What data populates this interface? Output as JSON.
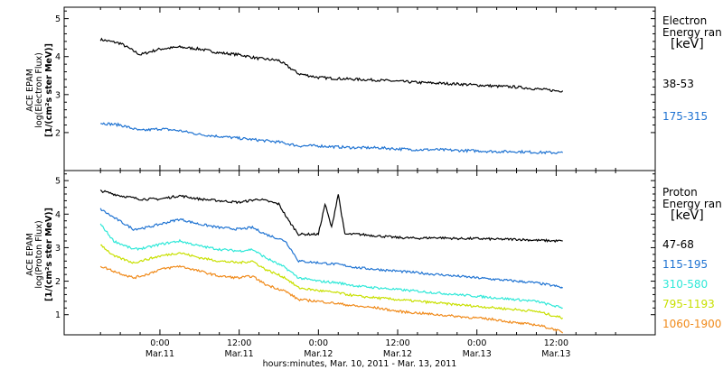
{
  "chart_data": [
    {
      "type": "line",
      "panel": "electron",
      "ylabel_lines": [
        "ACE EPAM",
        "log(Electron Flux)",
        "[1/(cm²s ster MeV)]"
      ],
      "legend_title_lines": [
        "Electron",
        "Energy ran",
        "[keV]"
      ],
      "ylim": [
        1,
        5.3
      ],
      "yticks": [
        2,
        3,
        4,
        5
      ],
      "series": [
        {
          "name": "38-53",
          "color": "#000000",
          "x": [
            -9,
            -6,
            -3,
            0,
            3,
            6,
            9,
            12,
            15,
            18,
            21,
            24,
            27,
            30,
            33,
            36,
            39,
            42,
            45,
            48,
            51,
            54,
            57,
            60,
            61
          ],
          "values": [
            4.45,
            4.35,
            4.05,
            4.2,
            4.25,
            4.2,
            4.1,
            4.05,
            3.95,
            3.9,
            3.55,
            3.45,
            3.42,
            3.4,
            3.38,
            3.35,
            3.32,
            3.3,
            3.28,
            3.25,
            3.22,
            3.2,
            3.15,
            3.1,
            3.1
          ]
        },
        {
          "name": "175-315",
          "color": "#1f73d2",
          "x": [
            -9,
            -6,
            -3,
            0,
            3,
            6,
            9,
            12,
            15,
            18,
            21,
            24,
            27,
            30,
            33,
            36,
            39,
            42,
            45,
            48,
            51,
            54,
            57,
            60,
            61
          ],
          "values": [
            2.25,
            2.2,
            2.05,
            2.1,
            2.05,
            1.95,
            1.9,
            1.85,
            1.8,
            1.75,
            1.65,
            1.65,
            1.62,
            1.6,
            1.6,
            1.57,
            1.55,
            1.55,
            1.53,
            1.52,
            1.5,
            1.5,
            1.48,
            1.47,
            1.47
          ]
        }
      ]
    },
    {
      "type": "line",
      "panel": "proton",
      "ylabel_lines": [
        "ACE EPAM",
        "log(Proton Flux)",
        "[1/(cm²s ster MeV)]"
      ],
      "legend_title_lines": [
        "Proton",
        "Energy ran",
        "[keV]"
      ],
      "ylim": [
        0.4,
        5.3
      ],
      "yticks": [
        1,
        2,
        3,
        4,
        5
      ],
      "series": [
        {
          "name": "47-68",
          "color": "#000000",
          "x": [
            -9,
            -6,
            -3,
            0,
            3,
            6,
            9,
            12,
            15,
            18,
            19.5,
            21,
            24,
            25,
            26,
            27,
            28,
            30,
            33,
            36,
            39,
            42,
            45,
            48,
            51,
            54,
            57,
            60,
            61
          ],
          "values": [
            4.7,
            4.55,
            4.45,
            4.45,
            4.55,
            4.45,
            4.4,
            4.35,
            4.45,
            4.3,
            3.8,
            3.4,
            3.4,
            4.3,
            3.6,
            4.6,
            3.4,
            3.4,
            3.35,
            3.3,
            3.28,
            3.3,
            3.27,
            3.27,
            3.25,
            3.25,
            3.22,
            3.2,
            3.2
          ]
        },
        {
          "name": "115-195",
          "color": "#1f73d2",
          "x": [
            -9,
            -7,
            -4,
            -2,
            0,
            3,
            6,
            9,
            12,
            14,
            16,
            19,
            21,
            24,
            27,
            30,
            33,
            36,
            39,
            42,
            45,
            48,
            51,
            54,
            57,
            60,
            61
          ],
          "values": [
            4.15,
            3.9,
            3.55,
            3.6,
            3.7,
            3.85,
            3.7,
            3.6,
            3.55,
            3.6,
            3.4,
            3.2,
            2.6,
            2.55,
            2.5,
            2.4,
            2.35,
            2.3,
            2.25,
            2.2,
            2.15,
            2.1,
            2.05,
            2.0,
            1.95,
            1.85,
            1.8
          ]
        },
        {
          "name": "310-580",
          "color": "#2ee8d8",
          "x": [
            -9,
            -7,
            -4,
            -2,
            0,
            3,
            6,
            9,
            12,
            14,
            16,
            19,
            21,
            24,
            27,
            30,
            33,
            36,
            39,
            42,
            45,
            48,
            51,
            54,
            57,
            60,
            61
          ],
          "values": [
            3.7,
            3.2,
            2.95,
            3.0,
            3.1,
            3.2,
            3.05,
            2.95,
            2.9,
            2.95,
            2.7,
            2.4,
            2.1,
            2.0,
            1.95,
            1.85,
            1.8,
            1.75,
            1.7,
            1.65,
            1.6,
            1.55,
            1.5,
            1.45,
            1.4,
            1.25,
            1.2
          ]
        },
        {
          "name": "795-1193",
          "color": "#c8e000",
          "x": [
            -9,
            -7,
            -4,
            -2,
            0,
            3,
            6,
            9,
            12,
            14,
            16,
            19,
            21,
            24,
            27,
            30,
            33,
            36,
            39,
            42,
            45,
            48,
            51,
            54,
            57,
            60,
            61
          ],
          "values": [
            3.1,
            2.75,
            2.55,
            2.65,
            2.75,
            2.85,
            2.7,
            2.6,
            2.55,
            2.6,
            2.35,
            2.1,
            1.8,
            1.72,
            1.65,
            1.55,
            1.5,
            1.45,
            1.4,
            1.35,
            1.3,
            1.25,
            1.2,
            1.15,
            1.1,
            0.95,
            0.9
          ]
        },
        {
          "name": "1060-1900",
          "color": "#f08a1a",
          "x": [
            -9,
            -7,
            -4,
            -2,
            0,
            3,
            6,
            9,
            12,
            14,
            16,
            19,
            21,
            24,
            27,
            30,
            33,
            36,
            39,
            42,
            45,
            48,
            51,
            54,
            57,
            60,
            61
          ],
          "values": [
            2.45,
            2.3,
            2.1,
            2.2,
            2.35,
            2.45,
            2.3,
            2.15,
            2.1,
            2.15,
            1.9,
            1.7,
            1.45,
            1.4,
            1.33,
            1.25,
            1.2,
            1.1,
            1.05,
            1.0,
            0.95,
            0.9,
            0.85,
            0.75,
            0.7,
            0.55,
            0.45
          ]
        }
      ]
    }
  ],
  "x_axis": {
    "xlim": [
      -14.5,
      75
    ],
    "major_ticks": [
      {
        "hours": 0,
        "time": "0:00",
        "date": "Mar.11"
      },
      {
        "hours": 12,
        "time": "12:00",
        "date": "Mar.11"
      },
      {
        "hours": 24,
        "time": "0:00",
        "date": "Mar.12"
      },
      {
        "hours": 36,
        "time": "12:00",
        "date": "Mar.12"
      },
      {
        "hours": 48,
        "time": "0:00",
        "date": "Mar.13"
      },
      {
        "hours": 60,
        "time": "12:00",
        "date": "Mar.13"
      }
    ],
    "label": "hours:minutes, Mar. 10, 2011 - Mar. 13, 2011"
  }
}
